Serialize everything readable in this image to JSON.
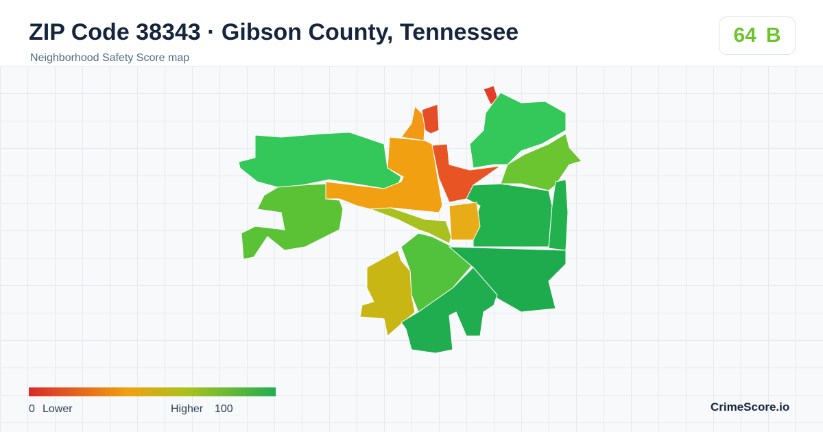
{
  "header": {
    "title": "ZIP Code 38343 · Gibson County, Tennessee",
    "subtitle": "Neighborhood Safety Score map"
  },
  "score": {
    "value": 64,
    "grade": "B"
  },
  "legend": {
    "min": 0,
    "min_label": "Lower",
    "max_label": "Higher",
    "max": 100
  },
  "brand": "CrimeScore.io"
}
